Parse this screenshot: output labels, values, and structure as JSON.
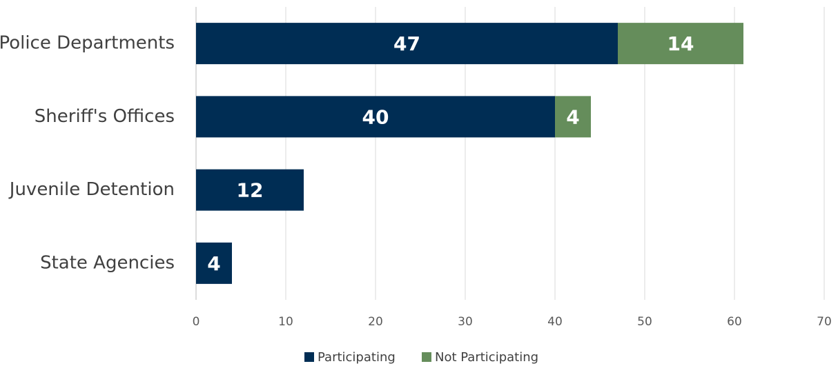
{
  "chart_data": {
    "type": "stacked-barh",
    "categories": [
      "Police Departments",
      "Sheriff's Offices",
      "Juvenile Detention",
      "State Agencies"
    ],
    "series": [
      {
        "name": "Participating",
        "color": "#002d54",
        "values": [
          47,
          40,
          12,
          4
        ]
      },
      {
        "name": "Not Participating",
        "color": "#658d5b",
        "values": [
          14,
          4,
          null,
          null
        ]
      }
    ],
    "xlim": [
      0,
      70
    ],
    "xticks": [
      0,
      10,
      20,
      30,
      40,
      50,
      60,
      70
    ],
    "grid": true,
    "legend": "bottom"
  }
}
